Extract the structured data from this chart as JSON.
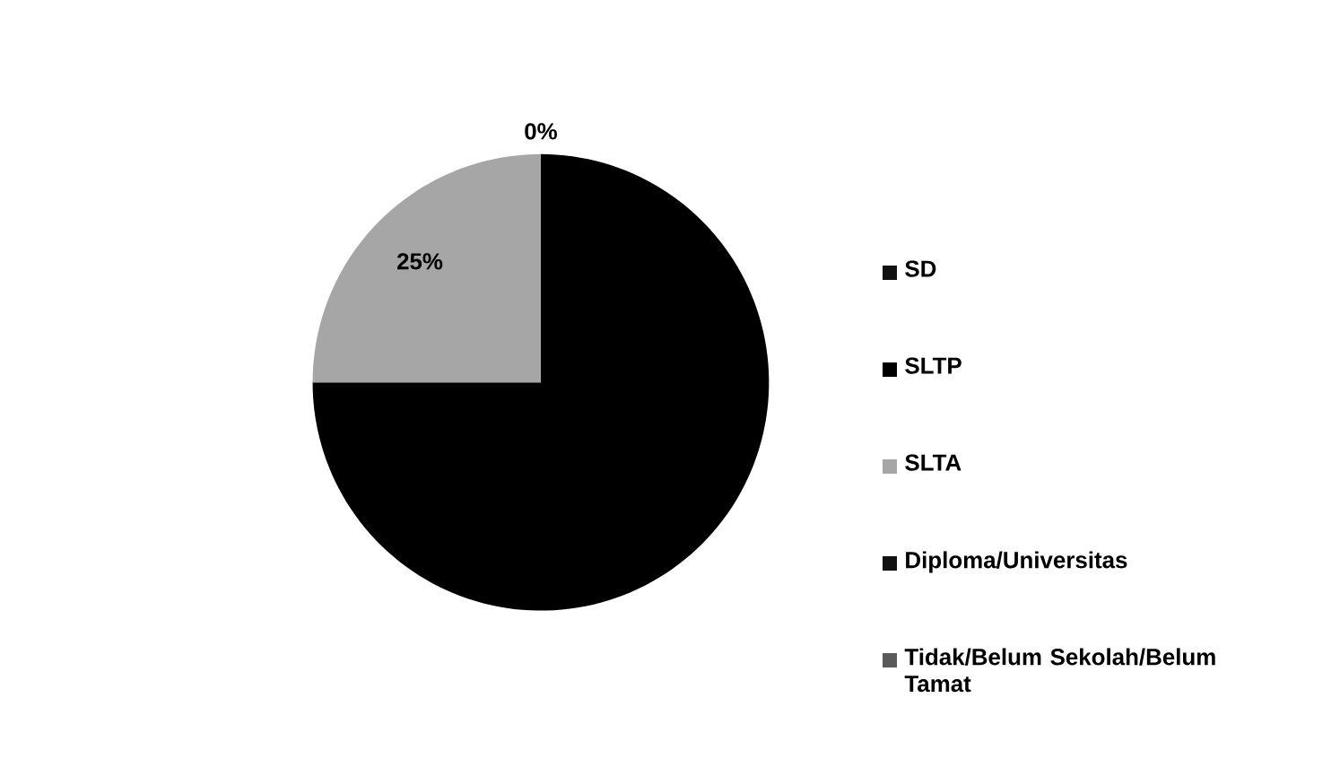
{
  "chart_data": {
    "type": "pie",
    "categories": [
      "SD",
      "SLTP",
      "SLTA",
      "Diploma/Universitas",
      "Tidak/Belum Sekolah/Belum Tamat"
    ],
    "values": [
      0,
      75,
      25,
      0,
      0
    ],
    "colors": [
      "#111111",
      "#000000",
      "#a6a6a6",
      "#111111",
      "#5a5a5a"
    ],
    "value_labels": [
      "0%",
      null,
      "25%",
      null,
      null
    ],
    "legend": "right"
  }
}
